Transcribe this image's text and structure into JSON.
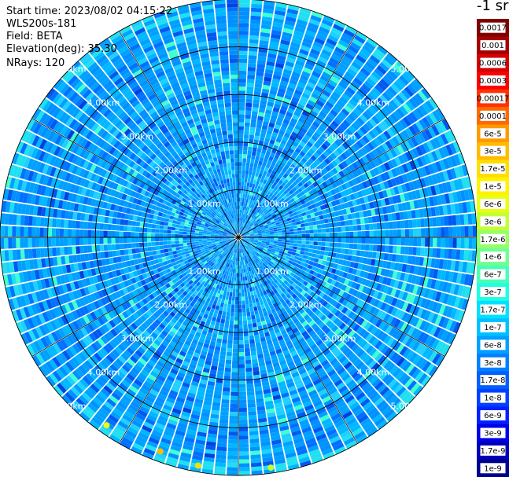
{
  "header": {
    "start_time": "Start time: 2023/08/02 04:15:22",
    "device": "WLS200s-181",
    "field": "Field: BETA",
    "elevation": "Elevation(deg): 35.30",
    "nrays": "NRays: 120"
  },
  "colorbar": {
    "title": "-1 sr",
    "labels": [
      "0.0017",
      "0.001",
      "0.0006",
      "0.0003",
      "0.00017",
      "0.0001",
      "6e-5",
      "3e-5",
      "1.7e-5",
      "1e-5",
      "6e-6",
      "3e-6",
      "1.7e-6",
      "1e-6",
      "6e-7",
      "3e-7",
      "1.7e-7",
      "1e-7",
      "6e-8",
      "3e-8",
      "1.7e-8",
      "1e-8",
      "6e-9",
      "3e-9",
      "1.7e-9",
      "1e-9"
    ],
    "colors": [
      "#7f0000",
      "#a50000",
      "#d40000",
      "#ff0000",
      "#ff3300",
      "#ff6a00",
      "#ff9900",
      "#ffbb00",
      "#ffdd00",
      "#fff200",
      "#e8ff10",
      "#c2ff33",
      "#99ff66",
      "#70ff8f",
      "#47ffb8",
      "#1fffe0",
      "#00e0ff",
      "#00c0ff",
      "#00a0ff",
      "#0080ff",
      "#0060ff",
      "#0040ff",
      "#0020ff",
      "#0000e8",
      "#0000b8",
      "#00008f"
    ]
  },
  "chart_data": {
    "type": "heatmap",
    "projection": "polar-ppi",
    "field": "BETA",
    "units": "sr-1",
    "n_rays": 120,
    "range_rings_km": [
      1.0,
      2.0,
      3.0,
      4.0,
      5.0
    ],
    "ring_labels": [
      "1.00km",
      "2.00km",
      "3.00km",
      "4.00km",
      "5.00km"
    ],
    "max_range_km": 5.0,
    "azimuth_lines_deg": [
      0,
      30,
      60,
      90,
      120,
      150,
      180,
      210,
      240,
      270,
      300,
      330
    ],
    "range_label_bearings_deg": [
      45,
      135,
      225,
      315
    ],
    "dominant_level": "1e-7",
    "colorscale": "jet-like, log scale from 1e-9 to 0.0017"
  }
}
